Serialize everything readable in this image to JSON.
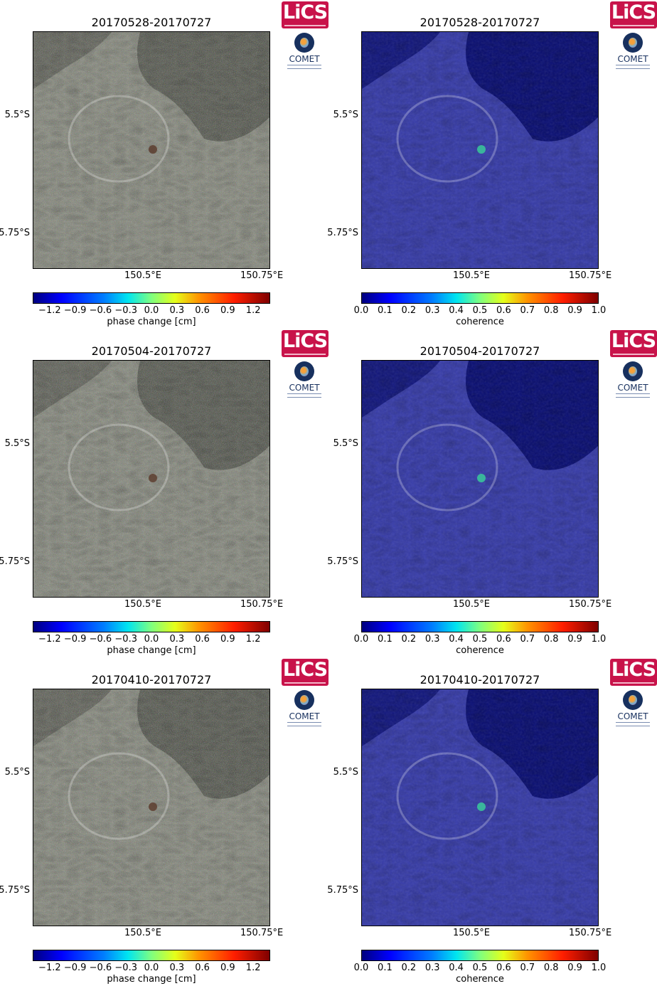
{
  "logos": {
    "lics": "LiCS",
    "comet": "COMET"
  },
  "colors": {
    "lics_brand": "#c8134a",
    "comet_brand": "#17305e",
    "land_phase": "#8a8d80",
    "water_phase": "#55584e",
    "land_coh": "#3a3fb0",
    "water_coh": "#0a0f78"
  },
  "axes": {
    "lat_ticks": [
      "5.5°S",
      "5.75°S"
    ],
    "lon_ticks": [
      "150.5°E",
      "150.75°E"
    ]
  },
  "colorbars": {
    "phase": {
      "label": "phase change [cm]",
      "ticks": [
        "−1.2",
        "−0.9",
        "−0.6",
        "−0.3",
        "0.0",
        "0.3",
        "0.6",
        "0.9",
        "1.2"
      ],
      "colormap": "jet"
    },
    "coherence": {
      "label": "coherence",
      "ticks": [
        "0.0",
        "0.1",
        "0.2",
        "0.3",
        "0.4",
        "0.5",
        "0.6",
        "0.7",
        "0.8",
        "0.9",
        "1.0"
      ],
      "colormap": "jet"
    }
  },
  "rows": [
    {
      "phase": {
        "title": "20170528-20170727"
      },
      "coherence": {
        "title": "20170528-20170727"
      }
    },
    {
      "phase": {
        "title": "20170504-20170727"
      },
      "coherence": {
        "title": "20170504-20170727"
      }
    },
    {
      "phase": {
        "title": "20170410-20170727"
      },
      "coherence": {
        "title": "20170410-20170727"
      }
    }
  ]
}
